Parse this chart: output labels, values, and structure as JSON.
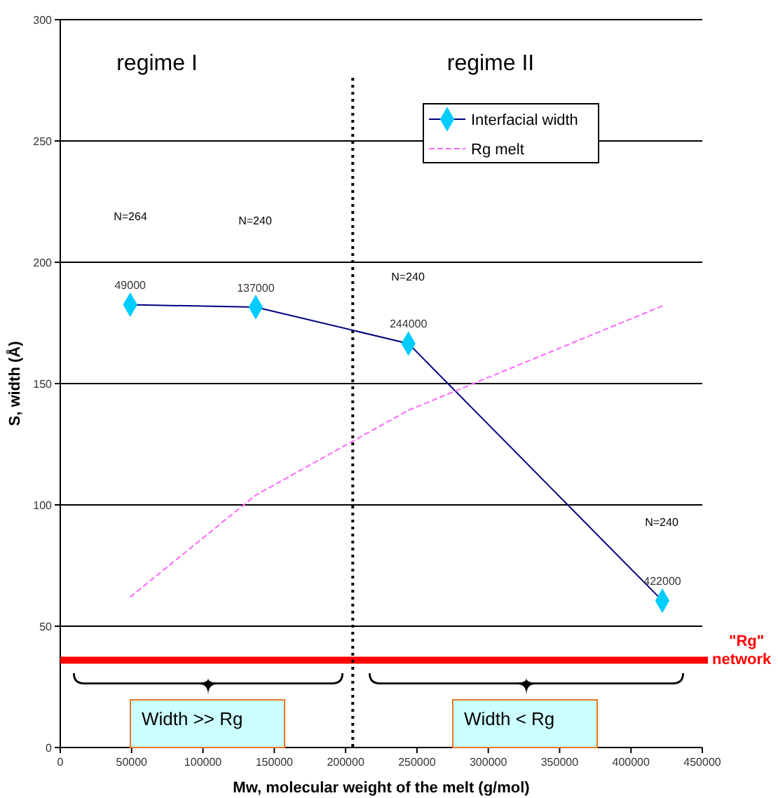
{
  "chart_data": {
    "type": "line",
    "xlabel": "Mw, molecular weight of the melt  (g/mol)",
    "ylabel": "S, width (Å)",
    "xlim": [
      0,
      450000
    ],
    "xticks": [
      0,
      50000,
      100000,
      150000,
      200000,
      250000,
      300000,
      350000,
      400000,
      450000
    ],
    "ylim": [
      0,
      300
    ],
    "yticks": [
      0,
      50,
      100,
      150,
      200,
      250,
      300
    ],
    "grid": "y",
    "legend": "top right",
    "series": [
      {
        "name": "Interfacial width",
        "color": "#000080",
        "marker": "diamond",
        "line_style": "solid",
        "x": [
          49000,
          137000,
          244000,
          422000
        ],
        "values": [
          182.5,
          181.5,
          166.5,
          60.5
        ]
      },
      {
        "name": "Rg melt",
        "color": "#ff66ff",
        "marker": "none",
        "line_style": "dashed",
        "x": [
          49000,
          137000,
          244000,
          422000
        ],
        "values": [
          62,
          104,
          139,
          182
        ]
      }
    ],
    "ref_lines": [
      {
        "axis": "y",
        "value": 36,
        "label": "\"Rg\" network",
        "color": "#ff0000",
        "line_style": "solid"
      },
      {
        "axis": "x",
        "value": 205000,
        "color": "#000000",
        "line_style": "dotted"
      }
    ],
    "annotations": [
      "regime I",
      "regime II",
      "Width >> Rg",
      "Width < Rg",
      "N=264",
      "N=240",
      "N=240",
      "N=240",
      {
        "text": "49000",
        "x": 49000,
        "y": 189
      },
      {
        "text": "137000",
        "x": 137000,
        "y": 188
      },
      {
        "text": "244000",
        "x": 244000,
        "y": 173
      },
      {
        "text": "422000",
        "x": 422000,
        "y": 67
      }
    ]
  }
}
